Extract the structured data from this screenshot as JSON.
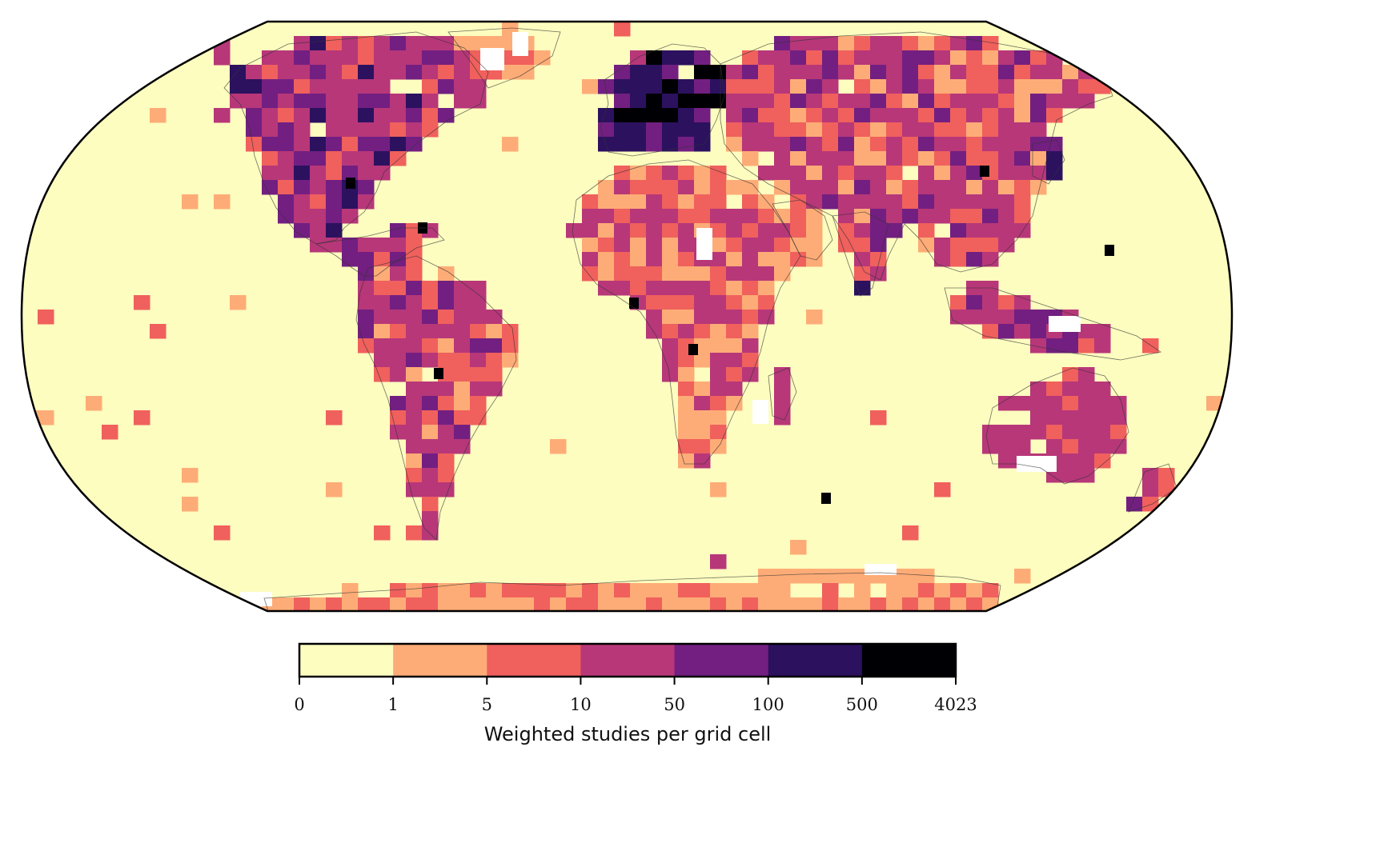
{
  "map": {
    "projection": "Robinson",
    "colormap": "magma (reversed, discrete)",
    "background_color": "#ffffff",
    "ocean_fill": "#fcfdbf",
    "coastline_color": "#333333",
    "land_regions": [
      {
        "name": "North America",
        "density": "high"
      },
      {
        "name": "Central America & Caribbean",
        "density": "high"
      },
      {
        "name": "South America",
        "density": "medium"
      },
      {
        "name": "Europe",
        "density": "very high"
      },
      {
        "name": "Africa",
        "density": "medium"
      },
      {
        "name": "Asia",
        "density": "high"
      },
      {
        "name": "Australia",
        "density": "medium"
      },
      {
        "name": "Antarctica",
        "density": "low"
      }
    ]
  },
  "legend": {
    "title": "Weighted studies per grid cell",
    "boundaries": [
      "0",
      "1",
      "5",
      "10",
      "50",
      "100",
      "500",
      "4023"
    ],
    "colors": [
      "#fcfdbf",
      "#feac77",
      "#f0605d",
      "#b73779",
      "#721f81",
      "#2c115f",
      "#000004"
    ]
  }
}
